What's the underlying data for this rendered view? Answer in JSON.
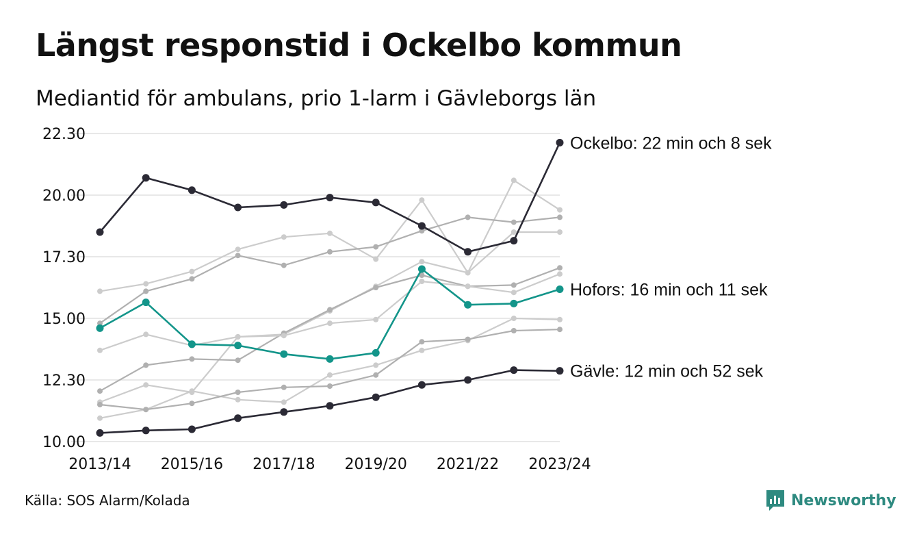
{
  "title": "Längst responstid i Ockelbo kommun",
  "subtitle": "Mediantid för ambulans, prio 1-larm i Gävleborgs län",
  "source": "Källa: SOS Alarm/Kolada",
  "brand": "Newsworthy",
  "colors": {
    "highlight_dark": "#2b2a35",
    "highlight_teal": "#13958a",
    "background_light": "#cccccc",
    "background_mid": "#b0b0b0",
    "grid": "#e0e0e0",
    "brand": "#2e8a80"
  },
  "chart_data": {
    "type": "line",
    "x_tick_labels": [
      "2013/14",
      "2015/16",
      "2017/18",
      "2019/20",
      "2021/22",
      "2023/24"
    ],
    "y_tick_labels": [
      "10.00",
      "12.30",
      "15.00",
      "17.30",
      "20.00",
      "22.30"
    ],
    "ylim": [
      10,
      22.5
    ],
    "grid": "horizontal",
    "legend": "none (direct end labels)",
    "categories": [
      "2013/14",
      "2014/15",
      "2015/16",
      "2016/17",
      "2017/18",
      "2018/19",
      "2019/20",
      "2020/21",
      "2021/22",
      "2022/23",
      "2023/24"
    ],
    "series": [
      {
        "values": [
          16.1,
          16.4,
          16.9,
          17.8,
          18.3,
          18.45,
          17.4,
          19.8,
          16.85,
          20.6,
          19.4
        ],
        "color": "#cccccc",
        "role": "background"
      },
      {
        "values": [
          14.8,
          16.1,
          16.6,
          17.55,
          17.15,
          17.7,
          17.9,
          18.55,
          19.1,
          18.9,
          19.1
        ],
        "color": "#b0b0b0",
        "role": "background"
      },
      {
        "values": [
          11.6,
          12.3,
          12.0,
          14.25,
          14.35,
          15.3,
          16.3,
          17.3,
          16.85,
          18.5,
          18.5
        ],
        "color": "#cccccc",
        "role": "background"
      },
      {
        "values": [
          12.05,
          13.1,
          13.35,
          13.3,
          14.4,
          15.35,
          16.25,
          16.75,
          16.3,
          16.35,
          17.05
        ],
        "color": "#b0b0b0",
        "role": "background"
      },
      {
        "values": [
          13.7,
          14.35,
          13.9,
          14.25,
          14.3,
          14.8,
          14.95,
          16.5,
          16.3,
          16.05,
          16.8
        ],
        "color": "#cccccc",
        "role": "background"
      },
      {
        "values": [
          10.95,
          11.3,
          12.05,
          11.7,
          11.6,
          12.7,
          13.1,
          13.7,
          14.1,
          15.0,
          14.95
        ],
        "color": "#cccccc",
        "role": "background"
      },
      {
        "values": [
          11.5,
          11.3,
          11.55,
          12.0,
          12.2,
          12.25,
          12.7,
          14.05,
          14.15,
          14.5,
          14.55
        ],
        "color": "#b0b0b0",
        "role": "background"
      },
      {
        "name": "Ockelbo",
        "end_label": "Ockelbo: 22 min och 8 sek",
        "values": [
          18.5,
          20.7,
          20.2,
          19.5,
          19.6,
          19.9,
          19.7,
          18.75,
          17.7,
          18.15,
          22.13
        ],
        "color": "#2b2a35",
        "role": "highlight"
      },
      {
        "name": "Hofors",
        "end_label": "Hofors: 16 min och 11 sek",
        "values": [
          14.6,
          15.65,
          13.95,
          13.9,
          13.55,
          13.35,
          13.6,
          17.0,
          15.55,
          15.6,
          16.18
        ],
        "color": "#13958a",
        "role": "highlight"
      },
      {
        "name": "Gävle",
        "end_label": "Gävle: 12 min och 52 sek",
        "values": [
          10.35,
          10.45,
          10.5,
          10.95,
          11.2,
          11.45,
          11.8,
          12.3,
          12.5,
          12.9,
          12.87
        ],
        "color": "#2b2a35",
        "role": "highlight"
      }
    ]
  }
}
